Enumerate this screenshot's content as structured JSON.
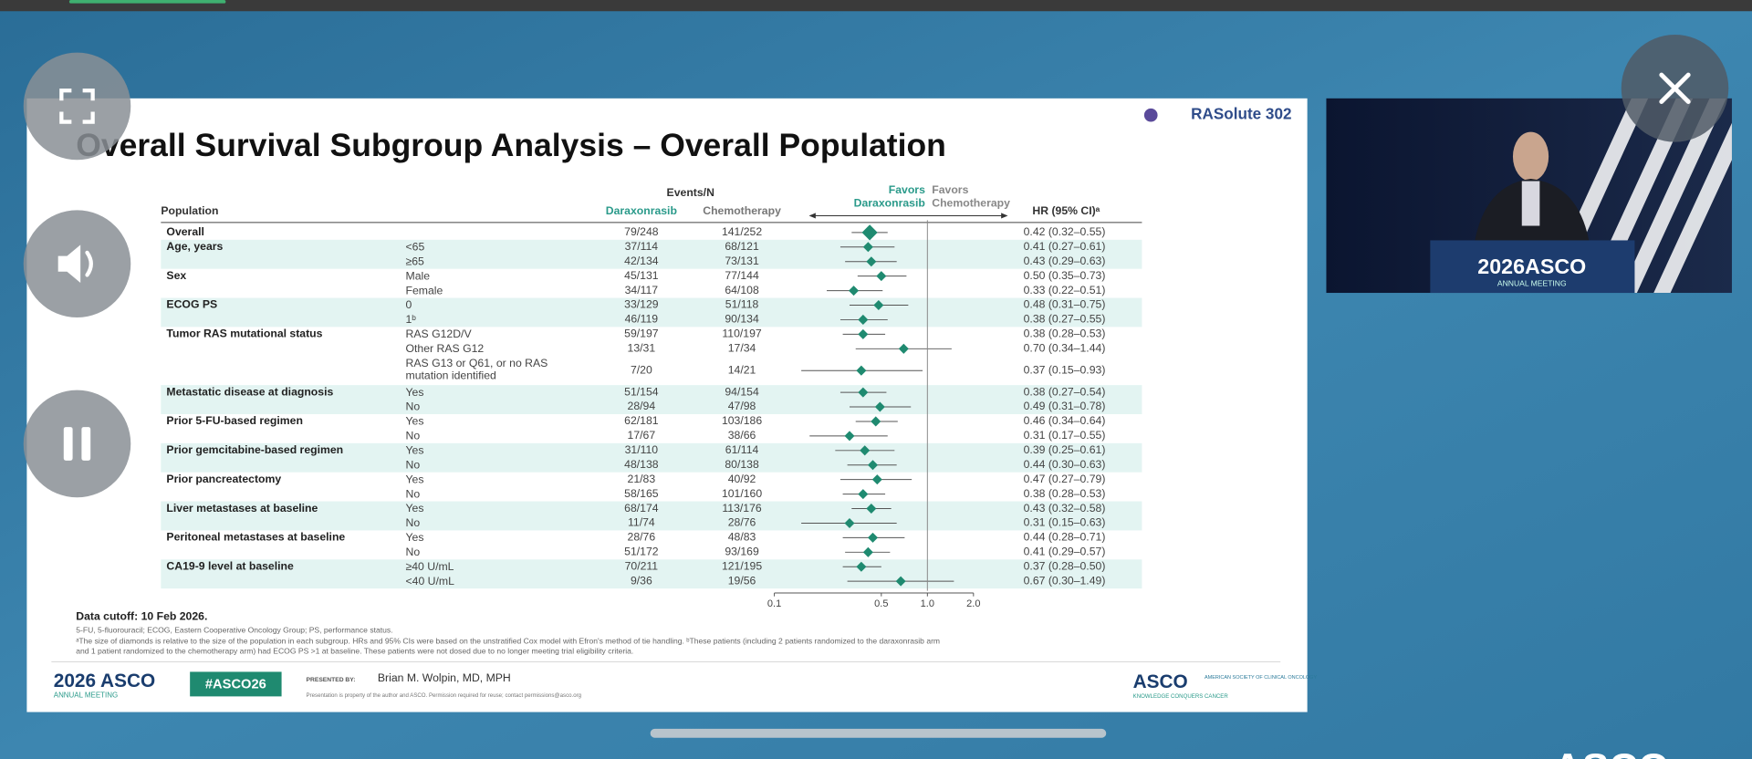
{
  "slide": {
    "brand": "RASolute 302",
    "title": "Overall Survival Subgroup Analysis – Overall Population",
    "columns": {
      "population": "Population",
      "events": "Events/N",
      "arm1": "Daraxonrasib",
      "arm2": "Chemotherapy",
      "favors1": "Favors Daraxonrasib",
      "favors2": "Favors Chemotherapy",
      "hr": "HR (95% CI)ᵃ"
    },
    "groups": [
      {
        "name": "Overall",
        "rows": [
          {
            "dara": "79/248",
            "chemo": "141/252",
            "hr": 0.42,
            "ci": [
              0.32,
              0.55
            ],
            "hr_label": "0.42 (0.32–0.55)"
          }
        ]
      },
      {
        "name": "Age, years",
        "rows": [
          {
            "label": "<65",
            "dara": "37/114",
            "chemo": "68/121",
            "hr": 0.41,
            "ci": [
              0.27,
              0.61
            ],
            "hr_label": "0.41 (0.27–0.61)"
          },
          {
            "label": "≥65",
            "dara": "42/134",
            "chemo": "73/131",
            "hr": 0.43,
            "ci": [
              0.29,
              0.63
            ],
            "hr_label": "0.43 (0.29–0.63)"
          }
        ]
      },
      {
        "name": "Sex",
        "rows": [
          {
            "label": "Male",
            "dara": "45/131",
            "chemo": "77/144",
            "hr": 0.5,
            "ci": [
              0.35,
              0.73
            ],
            "hr_label": "0.50 (0.35–0.73)"
          },
          {
            "label": "Female",
            "dara": "34/117",
            "chemo": "64/108",
            "hr": 0.33,
            "ci": [
              0.22,
              0.51
            ],
            "hr_label": "0.33 (0.22–0.51)"
          }
        ]
      },
      {
        "name": "ECOG PS",
        "rows": [
          {
            "label": "0",
            "dara": "33/129",
            "chemo": "51/118",
            "hr": 0.48,
            "ci": [
              0.31,
              0.75
            ],
            "hr_label": "0.48 (0.31–0.75)"
          },
          {
            "label": "1ᵇ",
            "dara": "46/119",
            "chemo": "90/134",
            "hr": 0.38,
            "ci": [
              0.27,
              0.55
            ],
            "hr_label": "0.38 (0.27–0.55)"
          }
        ]
      },
      {
        "name": "Tumor RAS mutational status",
        "rows": [
          {
            "label": "RAS G12D/V",
            "dara": "59/197",
            "chemo": "110/197",
            "hr": 0.38,
            "ci": [
              0.28,
              0.53
            ],
            "hr_label": "0.38 (0.28–0.53)"
          },
          {
            "label": "Other RAS G12",
            "dara": "13/31",
            "chemo": "17/34",
            "hr": 0.7,
            "ci": [
              0.34,
              1.44
            ],
            "hr_label": "0.70 (0.34–1.44)"
          },
          {
            "label": "RAS G13 or Q61, or no RAS mutation identified",
            "dara": "7/20",
            "chemo": "14/21",
            "hr": 0.37,
            "ci": [
              0.15,
              0.93
            ],
            "hr_label": "0.37 (0.15–0.93)"
          }
        ]
      },
      {
        "name": "Metastatic disease at diagnosis",
        "rows": [
          {
            "label": "Yes",
            "dara": "51/154",
            "chemo": "94/154",
            "hr": 0.38,
            "ci": [
              0.27,
              0.54
            ],
            "hr_label": "0.38 (0.27–0.54)"
          },
          {
            "label": "No",
            "dara": "28/94",
            "chemo": "47/98",
            "hr": 0.49,
            "ci": [
              0.31,
              0.78
            ],
            "hr_label": "0.49 (0.31–0.78)"
          }
        ]
      },
      {
        "name": "Prior 5-FU-based regimen",
        "rows": [
          {
            "label": "Yes",
            "dara": "62/181",
            "chemo": "103/186",
            "hr": 0.46,
            "ci": [
              0.34,
              0.64
            ],
            "hr_label": "0.46 (0.34–0.64)"
          },
          {
            "label": "No",
            "dara": "17/67",
            "chemo": "38/66",
            "hr": 0.31,
            "ci": [
              0.17,
              0.55
            ],
            "hr_label": "0.31 (0.17–0.55)"
          }
        ]
      },
      {
        "name": "Prior gemcitabine-based regimen",
        "rows": [
          {
            "label": "Yes",
            "dara": "31/110",
            "chemo": "61/114",
            "hr": 0.39,
            "ci": [
              0.25,
              0.61
            ],
            "hr_label": "0.39 (0.25–0.61)"
          },
          {
            "label": "No",
            "dara": "48/138",
            "chemo": "80/138",
            "hr": 0.44,
            "ci": [
              0.3,
              0.63
            ],
            "hr_label": "0.44 (0.30–0.63)"
          }
        ]
      },
      {
        "name": "Prior pancreatectomy",
        "rows": [
          {
            "label": "Yes",
            "dara": "21/83",
            "chemo": "40/92",
            "hr": 0.47,
            "ci": [
              0.27,
              0.79
            ],
            "hr_label": "0.47 (0.27–0.79)"
          },
          {
            "label": "No",
            "dara": "58/165",
            "chemo": "101/160",
            "hr": 0.38,
            "ci": [
              0.28,
              0.53
            ],
            "hr_label": "0.38 (0.28–0.53)"
          }
        ]
      },
      {
        "name": "Liver metastases at baseline",
        "rows": [
          {
            "label": "Yes",
            "dara": "68/174",
            "chemo": "113/176",
            "hr": 0.43,
            "ci": [
              0.32,
              0.58
            ],
            "hr_label": "0.43 (0.32–0.58)"
          },
          {
            "label": "No",
            "dara": "11/74",
            "chemo": "28/76",
            "hr": 0.31,
            "ci": [
              0.15,
              0.63
            ],
            "hr_label": "0.31 (0.15–0.63)"
          }
        ]
      },
      {
        "name": "Peritoneal metastases at baseline",
        "rows": [
          {
            "label": "Yes",
            "dara": "28/76",
            "chemo": "48/83",
            "hr": 0.44,
            "ci": [
              0.28,
              0.71
            ],
            "hr_label": "0.44 (0.28–0.71)"
          },
          {
            "label": "No",
            "dara": "51/172",
            "chemo": "93/169",
            "hr": 0.41,
            "ci": [
              0.29,
              0.57
            ],
            "hr_label": "0.41 (0.29–0.57)"
          }
        ]
      },
      {
        "name": "CA19-9 level at baseline",
        "rows": [
          {
            "label": "≥40 U/mL",
            "dara": "70/211",
            "chemo": "121/195",
            "hr": 0.37,
            "ci": [
              0.28,
              0.5
            ],
            "hr_label": "0.37 (0.28–0.50)"
          },
          {
            "label": "<40 U/mL",
            "dara": "9/36",
            "chemo": "19/56",
            "hr": 0.67,
            "ci": [
              0.3,
              1.49
            ],
            "hr_label": "0.67 (0.30–1.49)"
          }
        ]
      }
    ],
    "axis": {
      "scale": "log",
      "xlim": [
        0.1,
        2.0
      ],
      "xticks": [
        0.1,
        0.5,
        {
          "value": 1,
          "label": "1.0"
        },
        {
          "value": 2,
          "label": "2.0"
        }
      ],
      "reference": 1,
      "marker_color": "#1f8a70"
    },
    "data_cutoff": "Data cutoff: 10 Feb 2026.",
    "footnotes": [
      "5-FU, 5-fluorouracil; ECOG, Eastern Cooperative Oncology Group; PS, performance status.",
      "ᵃThe size of diamonds is relative to the size of the population in each subgroup. HRs and 95% CIs were based on the unstratified Cox model with Efron's method of tie handling. ᵇThese patients (including 2 patients randomized to the daraxonrasib arm",
      "and 1 patient randomized to the chemotherapy arm) had ECOG PS >1 at baseline. These patients were not dosed due to no longer meeting trial eligibility criteria."
    ],
    "footer": {
      "meeting": "2026 ASCO",
      "meeting_sub": "ANNUAL MEETING",
      "hashtag": "#ASCO26",
      "presented_by": "PRESENTED BY:",
      "presenter": "Brian M. Wolpin, MD, MPH",
      "notice": "Presentation is property of the author and ASCO. Permission required for reuse; contact permissions@asco.org",
      "society": "ASCO",
      "society_name": "AMERICAN SOCIETY OF CLINICAL ONCOLOGY",
      "tagline": "KNOWLEDGE CONQUERS CANCER"
    }
  },
  "video": {
    "logo": "2026ASCO",
    "logo_sub": "ANNUAL MEETING"
  },
  "background_logo": "ASCO"
}
